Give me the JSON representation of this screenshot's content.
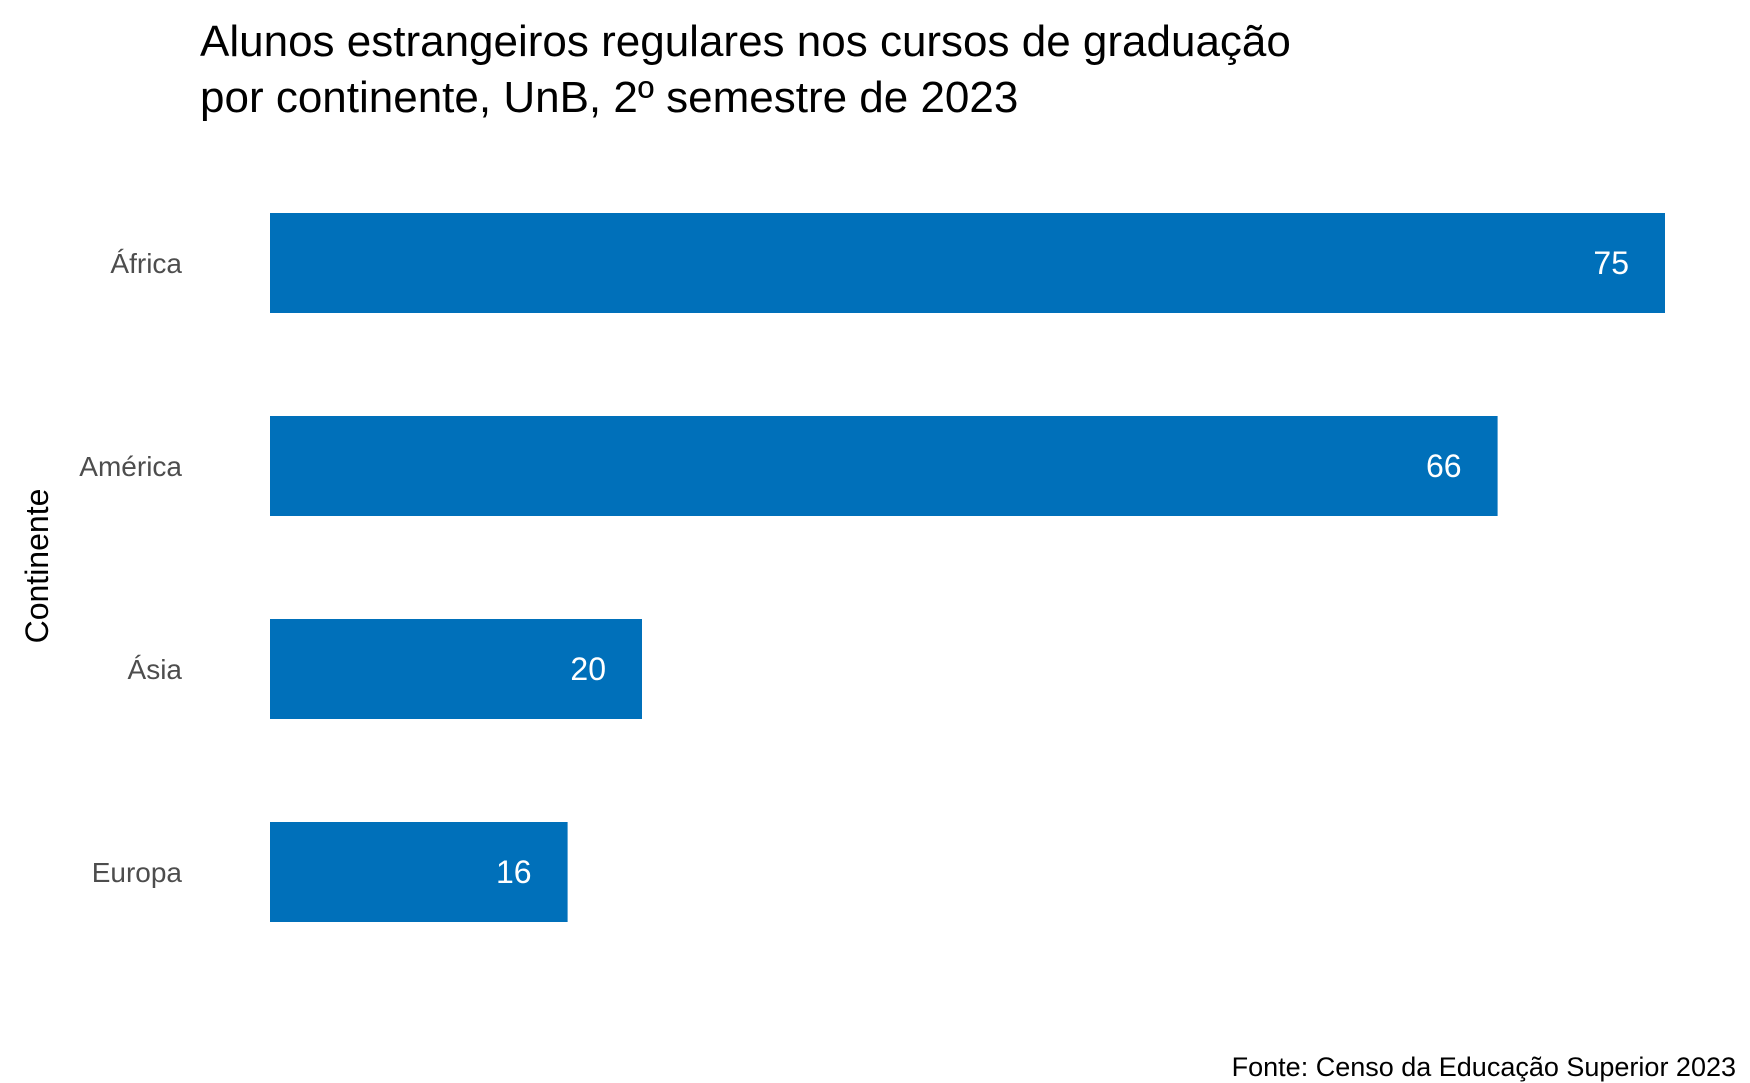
{
  "chart": {
    "title_line1": "Alunos estrangeiros regulares nos cursos de graduação",
    "title_line2": "por continente, UnB, 2º semestre de 2023",
    "caption": "Fonte: Censo da Educação Superior 2023"
  },
  "colors": {
    "bar": "#0070BA",
    "bar_label": "#ffffff",
    "tick_label": "#4d4d4d",
    "axis_title": "#000000"
  },
  "chart_data": {
    "type": "bar",
    "orientation": "horizontal",
    "title": "Alunos estrangeiros regulares nos cursos de graduação por continente, UnB, 2º semestre de 2023",
    "xlabel": "",
    "ylabel": "Continente",
    "categories": [
      "África",
      "América",
      "Ásia",
      "Europa"
    ],
    "values": [
      75,
      66,
      20,
      16
    ],
    "xlim": [
      0,
      75
    ],
    "grid": false,
    "legend": "none",
    "data_labels": true
  }
}
